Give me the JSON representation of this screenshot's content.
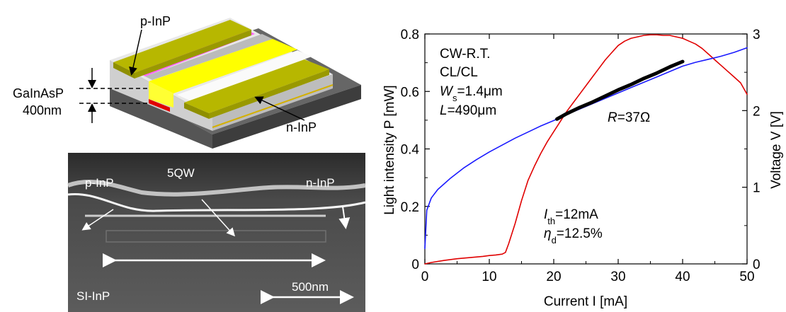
{
  "device_schematic": {
    "labels": {
      "p_inp": "p-InP",
      "n_inp": "n-InP",
      "galnasp": "GaInAsP",
      "thickness": "400nm"
    },
    "colors": {
      "contact": "#b7b700",
      "active": "#ffff00",
      "p_layer": "#ff66ff",
      "red_strip": "#e00000"
    }
  },
  "sem_image": {
    "labels": {
      "p_inp": "p-InP",
      "qw": "5QW",
      "n_inp": "n-InP",
      "substrate": "SI-InP",
      "scale": "500nm"
    }
  },
  "chart_data": {
    "type": "line",
    "annotations": {
      "cw": "CW-R.T.",
      "cl": "CL/CL",
      "ws_sym": "W",
      "ws_sub": "s",
      "ws_val": "=1.4μm",
      "l_sym": "L",
      "l_val": "=490μm",
      "r_sym": "R",
      "r_val": "=37Ω",
      "ith_sym": "I",
      "ith_sub": "th",
      "ith_val": "=12mA",
      "eta_sym": "η",
      "eta_sub": "d",
      "eta_val": "=12.5%"
    },
    "xlabel": "Current I [mA]",
    "ylabel_left": "Light intensity P [mW]",
    "ylabel_right": "Voltage V [V]",
    "xlim": [
      0,
      50
    ],
    "ylim_left": [
      0,
      0.8
    ],
    "ylim_right": [
      0,
      3
    ],
    "x_ticks": [
      "0",
      "10",
      "20",
      "30",
      "40",
      "50"
    ],
    "y_left_ticks": [
      "0",
      "0.2",
      "0.4",
      "0.6",
      "0.8"
    ],
    "y_right_ticks": [
      "0",
      "1",
      "2",
      "3"
    ],
    "series": [
      {
        "axis": "left",
        "color": "#e00000",
        "x": [
          0,
          1,
          3,
          5,
          7,
          9,
          10,
          11,
          12,
          12.5,
          13,
          14,
          15,
          16,
          17,
          18,
          19,
          20,
          21,
          22,
          23,
          24,
          25,
          26,
          27,
          28,
          29,
          30,
          31,
          32,
          33,
          34,
          35,
          36,
          37,
          38,
          39,
          40,
          41,
          42,
          43,
          44,
          45,
          46,
          47,
          48,
          49,
          50
        ],
        "y": [
          0.0,
          0.005,
          0.012,
          0.018,
          0.022,
          0.026,
          0.029,
          0.031,
          0.034,
          0.04,
          0.07,
          0.14,
          0.22,
          0.29,
          0.34,
          0.385,
          0.425,
          0.46,
          0.495,
          0.53,
          0.56,
          0.59,
          0.62,
          0.65,
          0.68,
          0.71,
          0.735,
          0.76,
          0.775,
          0.785,
          0.79,
          0.795,
          0.797,
          0.797,
          0.795,
          0.795,
          0.79,
          0.785,
          0.775,
          0.765,
          0.75,
          0.73,
          0.71,
          0.69,
          0.67,
          0.65,
          0.63,
          0.59
        ]
      },
      {
        "axis": "right",
        "color": "#1a1aff",
        "x": [
          0,
          0.3,
          1,
          2,
          4,
          6,
          8,
          10,
          12,
          14,
          16,
          18,
          20,
          22,
          24,
          26,
          28,
          30,
          32,
          34,
          36,
          38,
          40,
          42,
          44,
          46,
          48,
          50
        ],
        "y": [
          0.2,
          0.7,
          0.86,
          0.97,
          1.12,
          1.25,
          1.36,
          1.46,
          1.55,
          1.64,
          1.72,
          1.8,
          1.87,
          1.95,
          2.02,
          2.09,
          2.16,
          2.23,
          2.3,
          2.37,
          2.44,
          2.51,
          2.58,
          2.63,
          2.67,
          2.71,
          2.76,
          2.82
        ]
      },
      {
        "axis": "right",
        "color": "#000000",
        "x": [
          20.5,
          22,
          24,
          26,
          28,
          30,
          32,
          34,
          36,
          38,
          40
        ],
        "y": [
          1.89,
          1.96,
          2.04,
          2.11,
          2.19,
          2.27,
          2.34,
          2.42,
          2.49,
          2.57,
          2.64
        ]
      }
    ]
  }
}
